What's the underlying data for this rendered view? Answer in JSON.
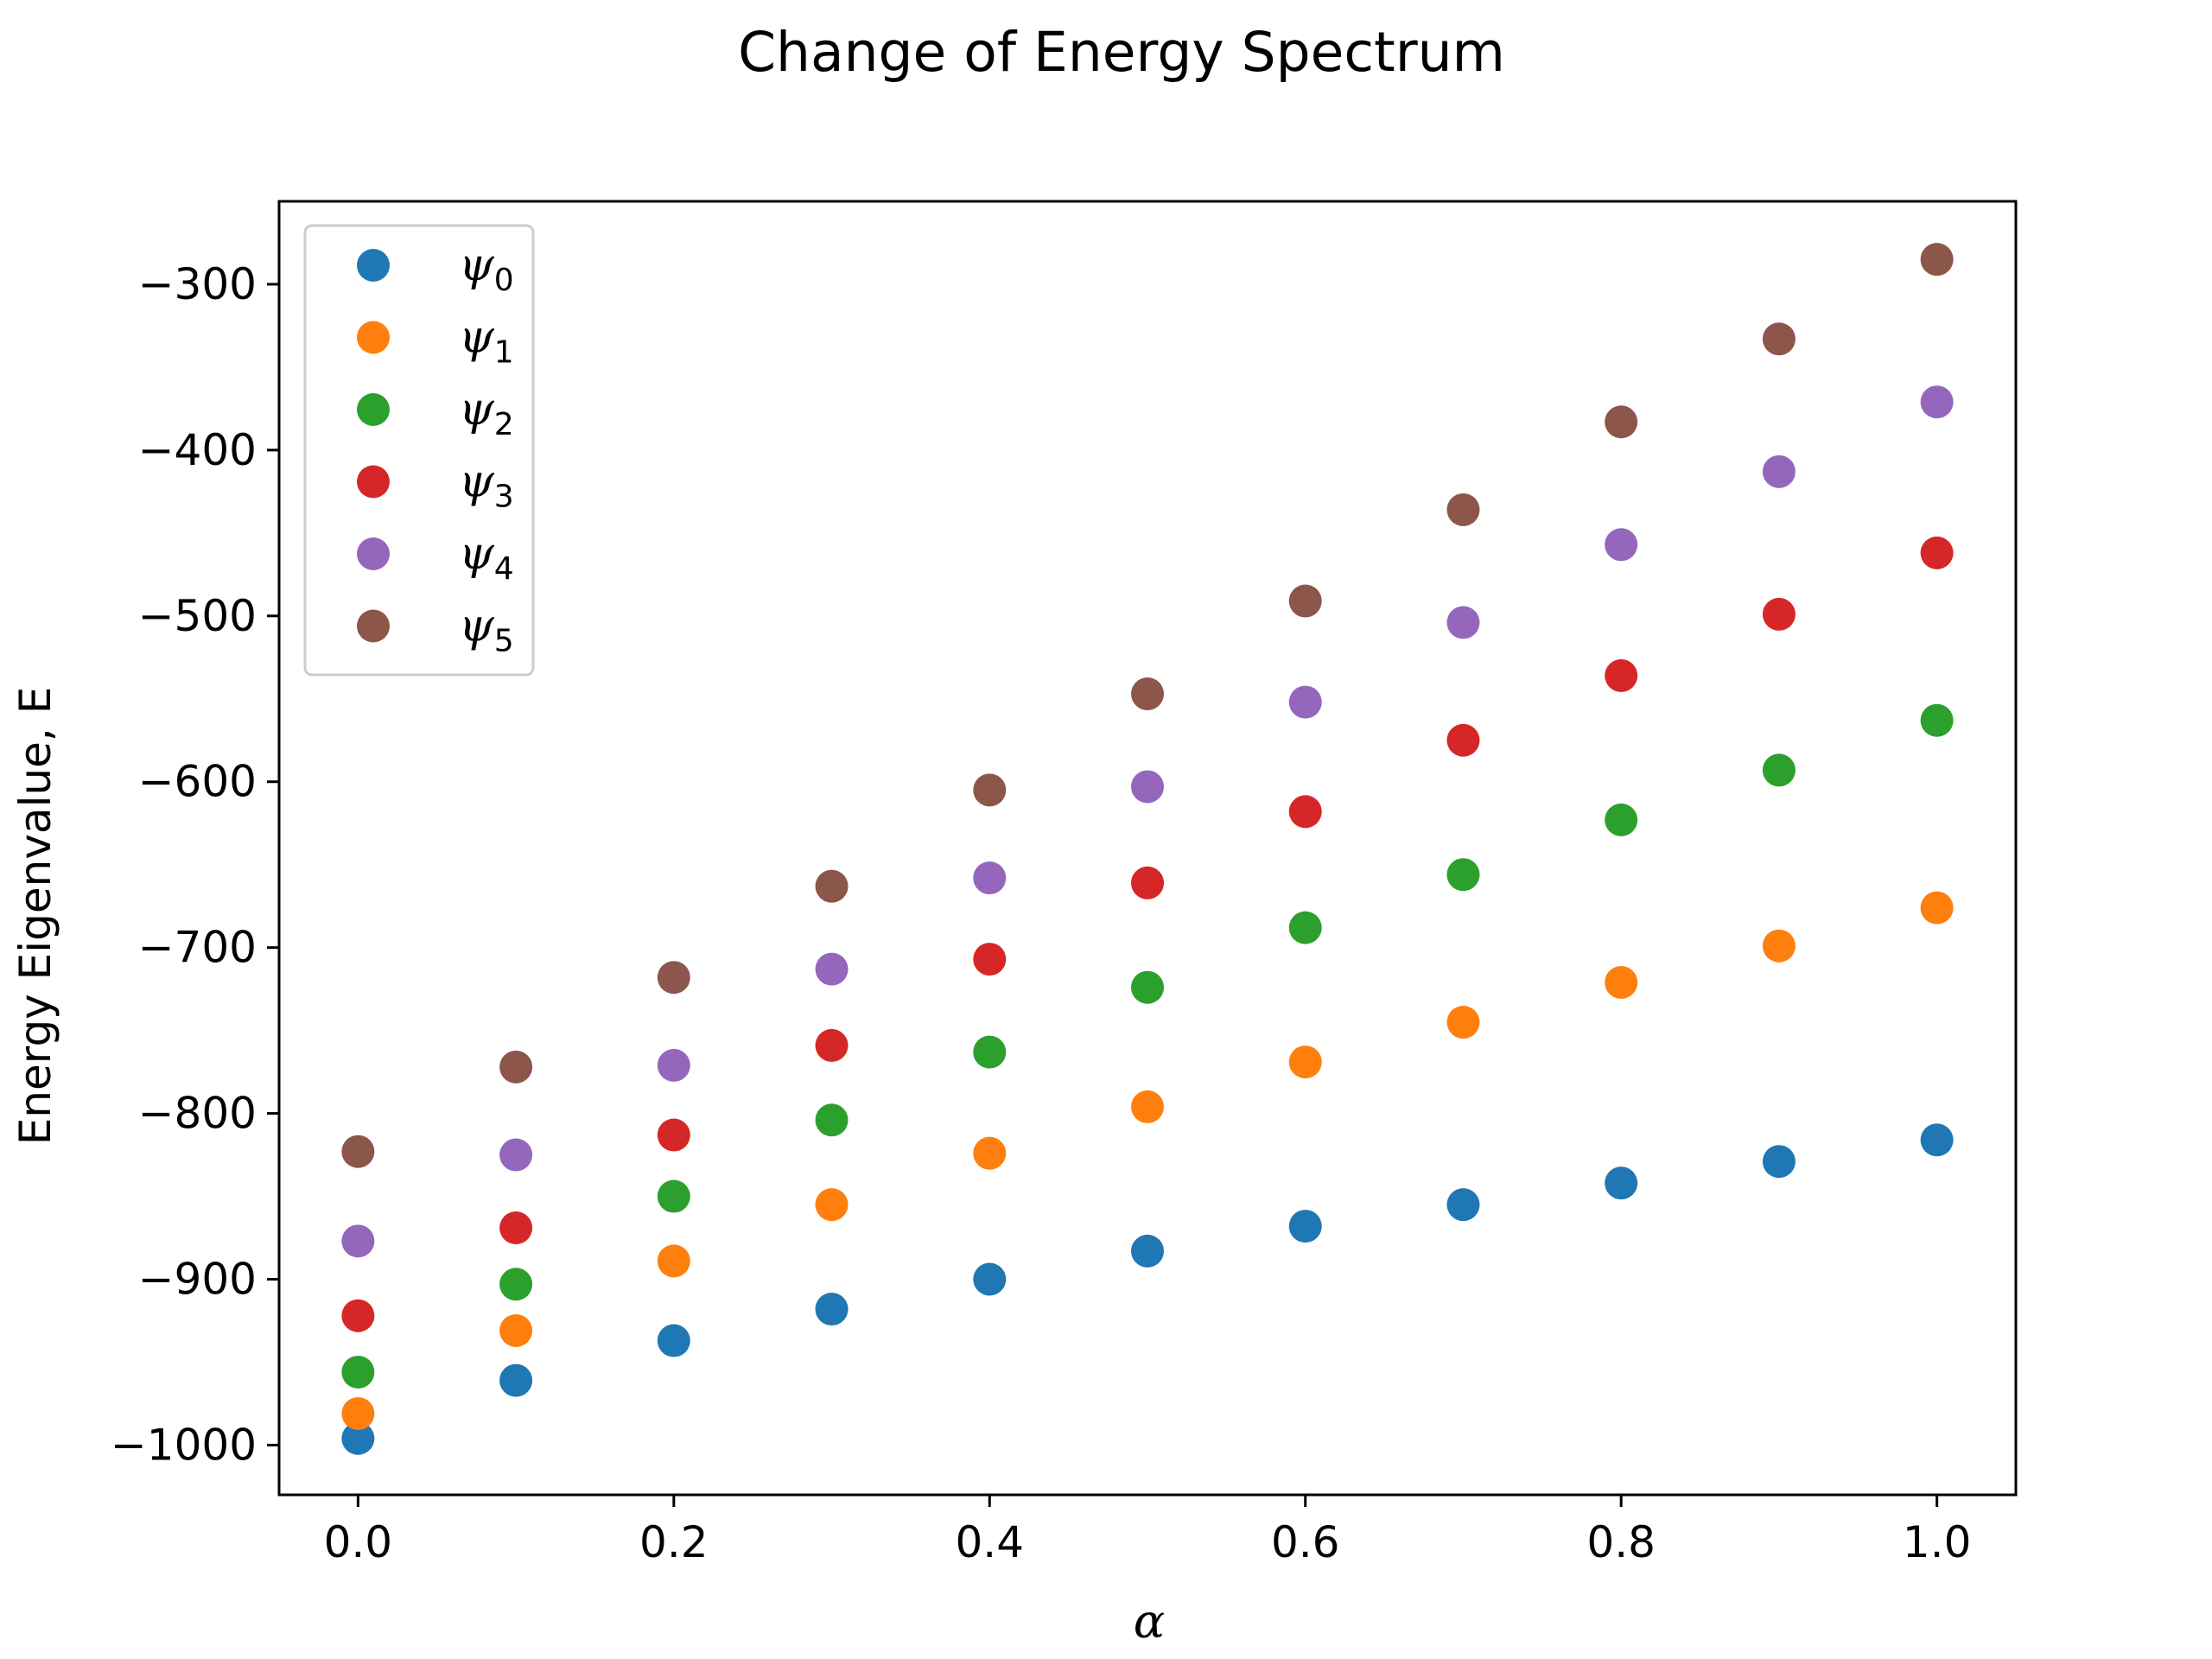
{
  "chart_data": {
    "type": "scatter",
    "title": "Change of Energy Spectrum",
    "xlabel": "α",
    "ylabel": "Energy Eigenvalue, E",
    "xlim": [
      -0.05,
      1.05
    ],
    "ylim": [
      -1030,
      -250
    ],
    "xticks": [
      0.0,
      0.2,
      0.4,
      0.6,
      0.8,
      1.0
    ],
    "xtick_labels": [
      "0.0",
      "0.2",
      "0.4",
      "0.6",
      "0.8",
      "1.0"
    ],
    "yticks": [
      -300,
      -400,
      -500,
      -600,
      -700,
      -800,
      -900,
      -1000
    ],
    "ytick_labels": [
      "−300",
      "−400",
      "−500",
      "−600",
      "−700",
      "−800",
      "−900",
      "−1000"
    ],
    "grid": false,
    "legend_position": "top-left",
    "x": [
      0.0,
      0.1,
      0.2,
      0.3,
      0.4,
      0.5,
      0.6,
      0.7,
      0.8,
      0.9,
      1.0
    ],
    "series": [
      {
        "name": "ψ",
        "subscript": "0",
        "color": "#1f77b4",
        "values": [
          -996,
          -961,
          -937,
          -918,
          -900,
          -883,
          -868,
          -855,
          -842,
          -829,
          -816
        ]
      },
      {
        "name": "ψ",
        "subscript": "1",
        "color": "#ff7f0e",
        "values": [
          -981,
          -931,
          -889,
          -855,
          -824,
          -796,
          -769,
          -745,
          -721,
          -699,
          -676
        ]
      },
      {
        "name": "ψ",
        "subscript": "2",
        "color": "#2ca02c",
        "values": [
          -956,
          -903,
          -850,
          -804,
          -763,
          -724,
          -688,
          -656,
          -623,
          -593,
          -563
        ]
      },
      {
        "name": "ψ",
        "subscript": "3",
        "color": "#d62728",
        "values": [
          -922,
          -869,
          -813,
          -759,
          -707,
          -661,
          -618,
          -575,
          -536,
          -499,
          -462
        ]
      },
      {
        "name": "ψ",
        "subscript": "4",
        "color": "#9467bd",
        "values": [
          -877,
          -825,
          -771,
          -713,
          -658,
          -603,
          -552,
          -504,
          -457,
          -413,
          -371
        ]
      },
      {
        "name": "ψ",
        "subscript": "5",
        "color": "#8c564b",
        "values": [
          -823,
          -772,
          -718,
          -663,
          -605,
          -547,
          -491,
          -436,
          -383,
          -333,
          -285
        ]
      }
    ]
  }
}
